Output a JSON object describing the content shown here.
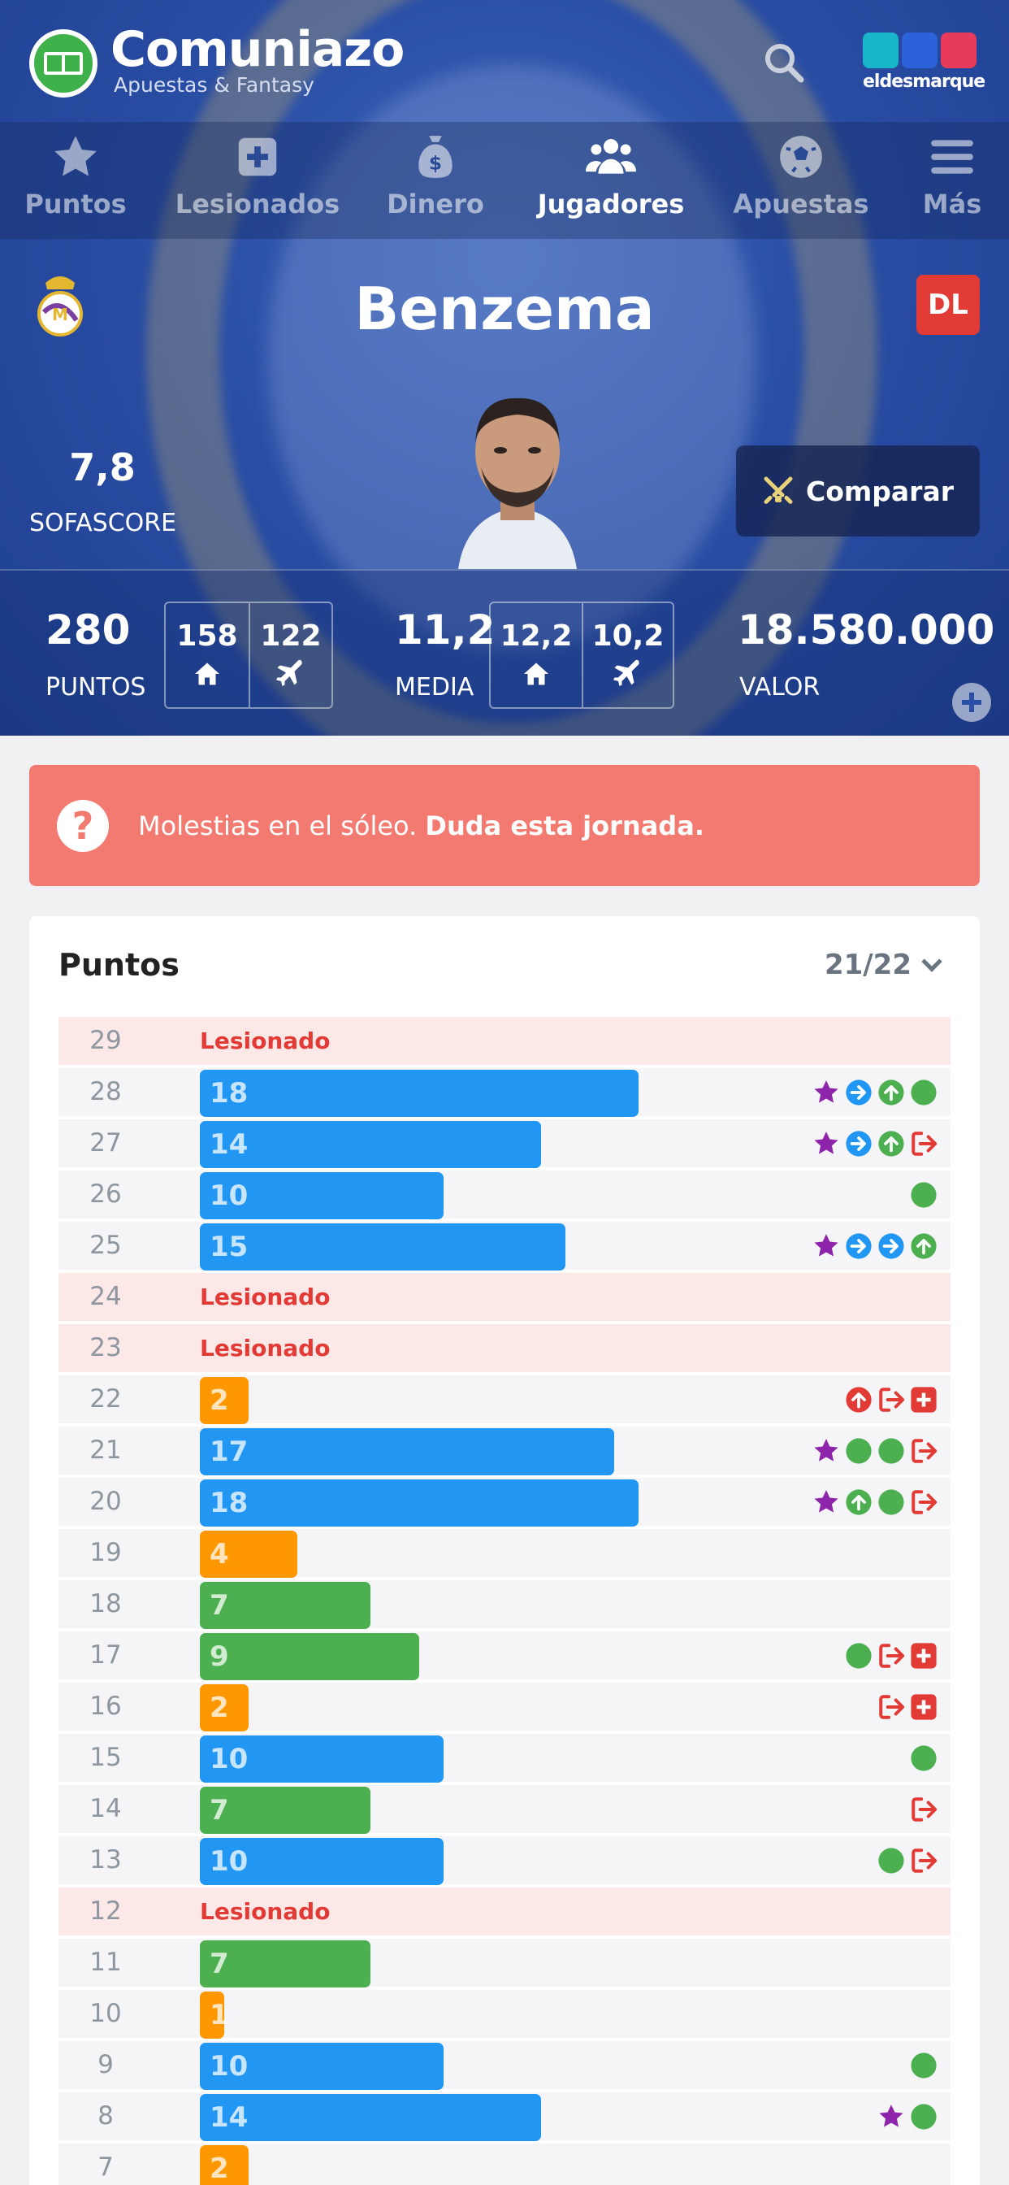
{
  "brand": {
    "title": "Comuniazo",
    "subtitle": "Apuestas & Fantasy",
    "partner": "eldesmarque"
  },
  "nav": [
    {
      "label": "Puntos",
      "icon": "star-icon"
    },
    {
      "label": "Lesionados",
      "icon": "plus-square-icon"
    },
    {
      "label": "Dinero",
      "icon": "money-bag-icon"
    },
    {
      "label": "Jugadores",
      "icon": "users-icon"
    },
    {
      "label": "Apuestas",
      "icon": "soccer-ball-icon"
    },
    {
      "label": "Más",
      "icon": "menu-icon"
    }
  ],
  "player": {
    "name": "Benzema",
    "position": "DL",
    "sofascore_value": "7,8",
    "sofascore_label": "SOFASCORE",
    "compare_label": "Comparar"
  },
  "stats": {
    "points": "280",
    "points_label": "PUNTOS",
    "points_home": "158",
    "points_away": "122",
    "avg": "11,2",
    "avg_label": "MEDIA",
    "avg_home": "12,2",
    "avg_away": "10,2",
    "value": "18.580.000",
    "value_label": "VALOR"
  },
  "alert": {
    "text": "Molestias en el sóleo. ",
    "bold": "Duda esta jornada."
  },
  "points_card": {
    "title": "Puntos",
    "season": "21/22",
    "injured_label": "Lesionado",
    "rows": [
      {
        "round": "29",
        "injured": true
      },
      {
        "round": "28",
        "points": 18,
        "color": "blue",
        "icons": [
          "star",
          "arrow-right",
          "arrow-up",
          "dot"
        ]
      },
      {
        "round": "27",
        "points": 14,
        "color": "blue",
        "icons": [
          "star",
          "arrow-right",
          "arrow-up",
          "sub-out"
        ]
      },
      {
        "round": "26",
        "points": 10,
        "color": "blue",
        "icons": [
          "dot"
        ]
      },
      {
        "round": "25",
        "points": 15,
        "color": "blue",
        "icons": [
          "star",
          "arrow-right",
          "arrow-right",
          "arrow-up"
        ]
      },
      {
        "round": "24",
        "injured": true
      },
      {
        "round": "23",
        "injured": true
      },
      {
        "round": "22",
        "points": 2,
        "color": "orange",
        "icons": [
          "arrow-up-red",
          "sub-out",
          "injury"
        ]
      },
      {
        "round": "21",
        "points": 17,
        "color": "blue",
        "icons": [
          "star",
          "dot",
          "dot",
          "sub-out"
        ]
      },
      {
        "round": "20",
        "points": 18,
        "color": "blue",
        "icons": [
          "star",
          "arrow-up",
          "dot",
          "sub-out"
        ]
      },
      {
        "round": "19",
        "points": 4,
        "color": "orange",
        "icons": []
      },
      {
        "round": "18",
        "points": 7,
        "color": "green",
        "icons": []
      },
      {
        "round": "17",
        "points": 9,
        "color": "green",
        "icons": [
          "dot",
          "sub-out",
          "injury"
        ]
      },
      {
        "round": "16",
        "points": 2,
        "color": "orange",
        "icons": [
          "sub-out",
          "injury"
        ]
      },
      {
        "round": "15",
        "points": 10,
        "color": "blue",
        "icons": [
          "dot"
        ]
      },
      {
        "round": "14",
        "points": 7,
        "color": "green",
        "icons": [
          "sub-out"
        ]
      },
      {
        "round": "13",
        "points": 10,
        "color": "blue",
        "icons": [
          "dot",
          "sub-out"
        ]
      },
      {
        "round": "12",
        "injured": true
      },
      {
        "round": "11",
        "points": 7,
        "color": "green",
        "icons": []
      },
      {
        "round": "10",
        "points": 1,
        "color": "orange",
        "icons": []
      },
      {
        "round": "9",
        "points": 10,
        "color": "blue",
        "icons": [
          "dot"
        ]
      },
      {
        "round": "8",
        "points": 14,
        "color": "blue",
        "icons": [
          "star",
          "dot"
        ]
      },
      {
        "round": "7",
        "points": 2,
        "color": "orange",
        "icons": []
      }
    ]
  },
  "colors": {
    "blue": "#2196f3",
    "green": "#4caf50",
    "orange": "#ff9800",
    "purple": "#8e24aa",
    "red": "#e23b36",
    "alert": "#f37a71"
  }
}
